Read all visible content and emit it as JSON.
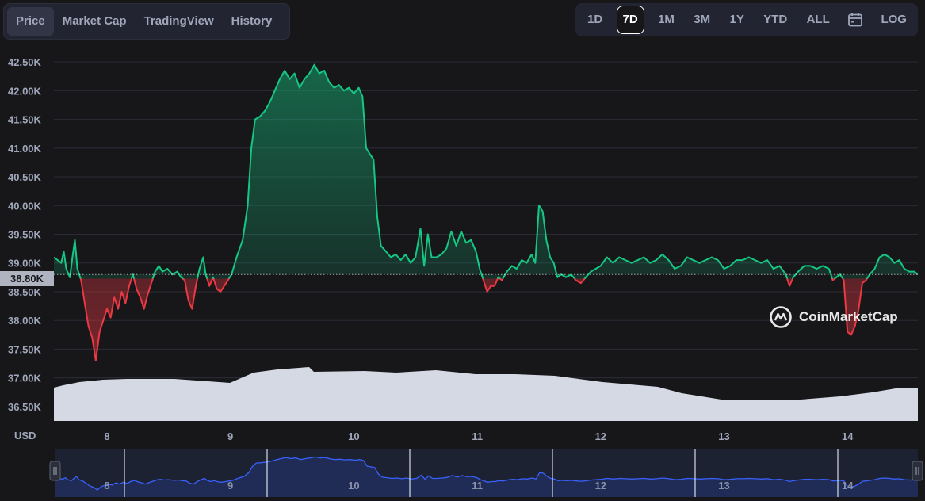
{
  "tabs": [
    {
      "label": "Price",
      "active": true
    },
    {
      "label": "Market Cap",
      "active": false
    },
    {
      "label": "TradingView",
      "active": false
    },
    {
      "label": "History",
      "active": false
    }
  ],
  "ranges": [
    {
      "label": "1D",
      "active": false
    },
    {
      "label": "7D",
      "active": true
    },
    {
      "label": "1M",
      "active": false
    },
    {
      "label": "3M",
      "active": false
    },
    {
      "label": "1Y",
      "active": false
    },
    {
      "label": "YTD",
      "active": false
    },
    {
      "label": "ALL",
      "active": false
    }
  ],
  "log_label": "LOG",
  "calendar_icon": "calendar-icon",
  "currency_label": "USD",
  "watermark": "CoinMarketCap",
  "chart_data": {
    "type": "area",
    "title": "",
    "ylabel": "USD",
    "x_ticks": [
      "8",
      "9",
      "10",
      "11",
      "12",
      "13",
      "14"
    ],
    "y_ticks": [
      "36.50K",
      "37.00K",
      "37.50K",
      "38.00K",
      "38.50K",
      "39.00K",
      "39.50K",
      "40.00K",
      "40.50K",
      "41.00K",
      "41.50K",
      "42.00K",
      "42.50K"
    ],
    "ylim": [
      36250,
      42750
    ],
    "xlim": [
      7.57,
      14.57
    ],
    "baseline": 38800,
    "baseline_label": "38.80K",
    "colors": {
      "above": "#16c784",
      "below": "#ea3943",
      "volume": "#d5d9e4",
      "navigator": "#3861fb"
    },
    "grid": true,
    "series": [
      {
        "values": [
          [
            7.57,
            39100
          ],
          [
            7.63,
            39000
          ],
          [
            7.65,
            39200
          ],
          [
            7.67,
            38900
          ],
          [
            7.7,
            38750
          ],
          [
            7.72,
            39100
          ],
          [
            7.74,
            39400
          ],
          [
            7.76,
            38900
          ],
          [
            7.79,
            38700
          ],
          [
            7.82,
            38300
          ],
          [
            7.85,
            37900
          ],
          [
            7.88,
            37700
          ],
          [
            7.91,
            37300
          ],
          [
            7.94,
            37800
          ],
          [
            7.97,
            38000
          ],
          [
            8.0,
            38200
          ],
          [
            8.03,
            38050
          ],
          [
            8.06,
            38400
          ],
          [
            8.09,
            38200
          ],
          [
            8.12,
            38500
          ],
          [
            8.15,
            38300
          ],
          [
            8.18,
            38600
          ],
          [
            8.21,
            38800
          ],
          [
            8.24,
            38550
          ],
          [
            8.27,
            38400
          ],
          [
            8.3,
            38200
          ],
          [
            8.33,
            38450
          ],
          [
            8.36,
            38650
          ],
          [
            8.39,
            38850
          ],
          [
            8.42,
            38950
          ],
          [
            8.45,
            38850
          ],
          [
            8.49,
            38900
          ],
          [
            8.53,
            38800
          ],
          [
            8.57,
            38850
          ],
          [
            8.6,
            38750
          ],
          [
            8.63,
            38700
          ],
          [
            8.66,
            38350
          ],
          [
            8.69,
            38200
          ],
          [
            8.72,
            38600
          ],
          [
            8.75,
            38900
          ],
          [
            8.78,
            39100
          ],
          [
            8.8,
            38800
          ],
          [
            8.83,
            38600
          ],
          [
            8.86,
            38750
          ],
          [
            8.89,
            38550
          ],
          [
            8.92,
            38500
          ],
          [
            8.95,
            38600
          ],
          [
            8.98,
            38700
          ],
          [
            9.01,
            38800
          ],
          [
            9.05,
            39100
          ],
          [
            9.1,
            39400
          ],
          [
            9.14,
            40000
          ],
          [
            9.17,
            41000
          ],
          [
            9.2,
            41500
          ],
          [
            9.24,
            41550
          ],
          [
            9.28,
            41650
          ],
          [
            9.32,
            41800
          ],
          [
            9.36,
            42000
          ],
          [
            9.4,
            42200
          ],
          [
            9.44,
            42350
          ],
          [
            9.48,
            42200
          ],
          [
            9.52,
            42300
          ],
          [
            9.56,
            42050
          ],
          [
            9.6,
            42200
          ],
          [
            9.64,
            42300
          ],
          [
            9.68,
            42450
          ],
          [
            9.72,
            42300
          ],
          [
            9.76,
            42350
          ],
          [
            9.8,
            42150
          ],
          [
            9.84,
            42050
          ],
          [
            9.88,
            42100
          ],
          [
            9.92,
            42000
          ],
          [
            9.96,
            42050
          ],
          [
            10.0,
            41950
          ],
          [
            10.04,
            42050
          ],
          [
            10.07,
            41900
          ],
          [
            10.1,
            41000
          ],
          [
            10.13,
            40900
          ],
          [
            10.16,
            40800
          ],
          [
            10.19,
            39800
          ],
          [
            10.22,
            39300
          ],
          [
            10.26,
            39200
          ],
          [
            10.3,
            39100
          ],
          [
            10.34,
            39150
          ],
          [
            10.38,
            39050
          ],
          [
            10.42,
            39150
          ],
          [
            10.46,
            39000
          ],
          [
            10.5,
            39100
          ],
          [
            10.54,
            39600
          ],
          [
            10.57,
            38950
          ],
          [
            10.6,
            39500
          ],
          [
            10.63,
            39100
          ],
          [
            10.67,
            39100
          ],
          [
            10.71,
            39150
          ],
          [
            10.75,
            39250
          ],
          [
            10.79,
            39550
          ],
          [
            10.83,
            39300
          ],
          [
            10.87,
            39550
          ],
          [
            10.91,
            39350
          ],
          [
            10.95,
            39400
          ],
          [
            10.99,
            39200
          ],
          [
            11.02,
            38900
          ],
          [
            11.05,
            38700
          ],
          [
            11.08,
            38500
          ],
          [
            11.11,
            38600
          ],
          [
            11.14,
            38600
          ],
          [
            11.17,
            38750
          ],
          [
            11.2,
            38700
          ],
          [
            11.24,
            38850
          ],
          [
            11.28,
            38950
          ],
          [
            11.32,
            38900
          ],
          [
            11.36,
            39050
          ],
          [
            11.4,
            39000
          ],
          [
            11.44,
            39150
          ],
          [
            11.47,
            39000
          ],
          [
            11.5,
            40000
          ],
          [
            11.53,
            39900
          ],
          [
            11.56,
            39400
          ],
          [
            11.59,
            39100
          ],
          [
            11.62,
            39000
          ],
          [
            11.65,
            38750
          ],
          [
            11.68,
            38800
          ],
          [
            11.72,
            38750
          ],
          [
            11.76,
            38800
          ],
          [
            11.8,
            38700
          ],
          [
            11.84,
            38650
          ],
          [
            11.88,
            38750
          ],
          [
            11.92,
            38850
          ],
          [
            11.96,
            38900
          ],
          [
            12.0,
            38950
          ],
          [
            12.05,
            39100
          ],
          [
            12.1,
            39000
          ],
          [
            12.15,
            39100
          ],
          [
            12.2,
            39050
          ],
          [
            12.25,
            39000
          ],
          [
            12.3,
            39050
          ],
          [
            12.35,
            39100
          ],
          [
            12.4,
            39000
          ],
          [
            12.45,
            39050
          ],
          [
            12.5,
            39150
          ],
          [
            12.55,
            39050
          ],
          [
            12.6,
            38900
          ],
          [
            12.65,
            38950
          ],
          [
            12.7,
            39100
          ],
          [
            12.75,
            39050
          ],
          [
            12.8,
            39000
          ],
          [
            12.85,
            39050
          ],
          [
            12.9,
            39100
          ],
          [
            12.95,
            39050
          ],
          [
            13.0,
            38900
          ],
          [
            13.05,
            38950
          ],
          [
            13.1,
            39050
          ],
          [
            13.15,
            39050
          ],
          [
            13.2,
            39100
          ],
          [
            13.25,
            39050
          ],
          [
            13.3,
            39000
          ],
          [
            13.35,
            39050
          ],
          [
            13.4,
            38900
          ],
          [
            13.45,
            38950
          ],
          [
            13.5,
            38800
          ],
          [
            13.53,
            38600
          ],
          [
            13.56,
            38750
          ],
          [
            13.6,
            38850
          ],
          [
            13.65,
            38950
          ],
          [
            13.7,
            38950
          ],
          [
            13.75,
            38900
          ],
          [
            13.8,
            38950
          ],
          [
            13.85,
            38900
          ],
          [
            13.88,
            38700
          ],
          [
            13.91,
            38750
          ],
          [
            13.94,
            38800
          ],
          [
            13.97,
            38700
          ],
          [
            14.0,
            37800
          ],
          [
            14.03,
            37750
          ],
          [
            14.06,
            37900
          ],
          [
            14.09,
            38200
          ],
          [
            14.12,
            38650
          ],
          [
            14.15,
            38700
          ],
          [
            14.18,
            38800
          ],
          [
            14.22,
            38900
          ],
          [
            14.26,
            39100
          ],
          [
            14.3,
            39150
          ],
          [
            14.34,
            39100
          ],
          [
            14.38,
            39000
          ],
          [
            14.42,
            39050
          ],
          [
            14.46,
            38900
          ],
          [
            14.5,
            38850
          ],
          [
            14.54,
            38850
          ],
          [
            14.57,
            38800
          ]
        ]
      }
    ]
  }
}
